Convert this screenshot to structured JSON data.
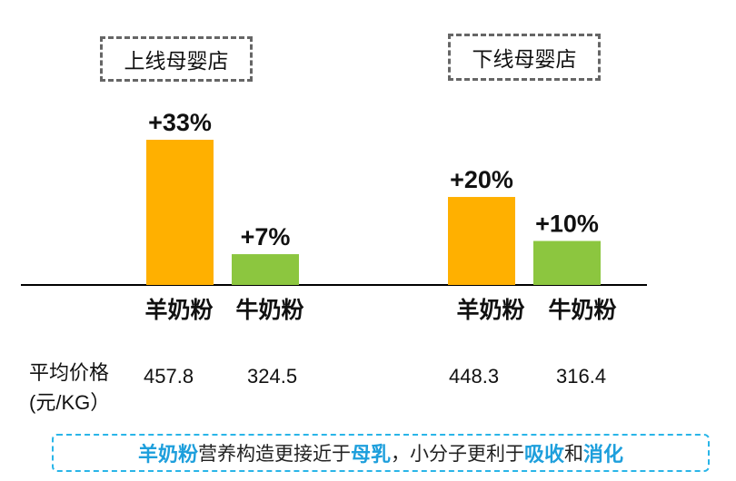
{
  "chart_data": [
    {
      "type": "bar",
      "title": "上线母婴店",
      "categories": [
        "羊奶粉",
        "牛奶粉"
      ],
      "values": [
        33,
        7
      ],
      "value_labels": [
        "+33%",
        "+7%"
      ],
      "colors": [
        "#FFB000",
        "#8CC63F"
      ],
      "avg_price": [
        "457.8",
        "324.5"
      ]
    },
    {
      "type": "bar",
      "title": "下线母婴店",
      "categories": [
        "羊奶粉",
        "牛奶粉"
      ],
      "values": [
        20,
        10
      ],
      "value_labels": [
        "+20%",
        "+10%"
      ],
      "colors": [
        "#FFB000",
        "#8CC63F"
      ],
      "avg_price": [
        "448.3",
        "316.4"
      ]
    }
  ],
  "price_label": {
    "line1": "平均价格",
    "line2": "(元/KG）"
  },
  "footer": [
    {
      "text": "羊奶粉",
      "highlight": true
    },
    {
      "text": "营养构造更接近于",
      "highlight": false
    },
    {
      "text": "母乳",
      "highlight": true
    },
    {
      "text": "，小分子更利于",
      "highlight": false
    },
    {
      "text": "吸收",
      "highlight": true
    },
    {
      "text": "和",
      "highlight": false
    },
    {
      "text": "消化",
      "highlight": true
    }
  ]
}
